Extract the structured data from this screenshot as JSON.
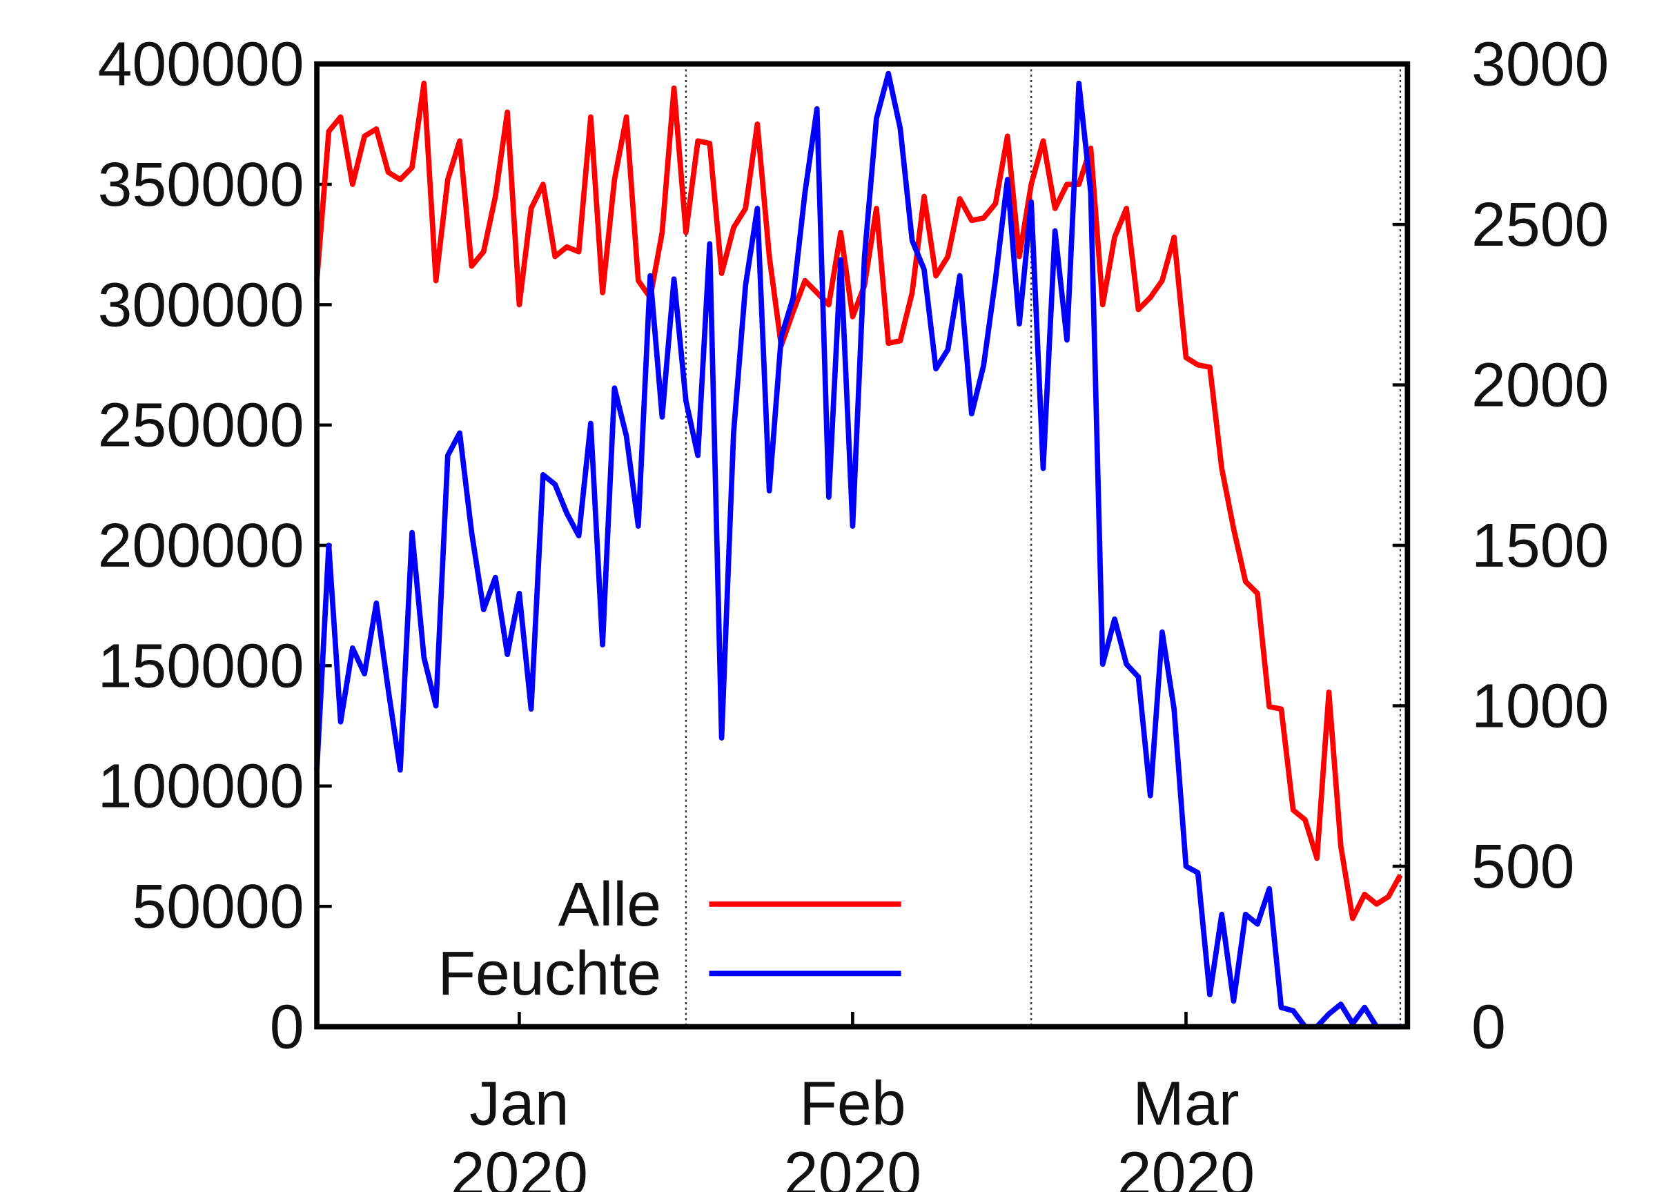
{
  "chart_data": {
    "type": "line",
    "x": [
      1,
      2,
      3,
      4,
      5,
      6,
      7,
      8,
      9,
      10,
      11,
      12,
      13,
      14,
      15,
      16,
      17,
      18,
      19,
      20,
      21,
      22,
      23,
      24,
      25,
      26,
      27,
      28,
      29,
      30,
      31,
      32,
      33,
      34,
      35,
      36,
      37,
      38,
      39,
      40,
      41,
      42,
      43,
      44,
      45,
      46,
      47,
      48,
      49,
      50,
      51,
      52,
      53,
      54,
      55,
      56,
      57,
      58,
      59,
      60,
      61,
      62,
      63,
      64,
      65,
      66,
      67,
      68,
      69,
      70,
      71,
      72,
      73,
      74,
      75,
      76,
      77,
      78,
      79,
      80,
      81,
      82,
      83,
      84,
      85,
      86,
      87,
      88,
      89,
      90,
      91,
      92
    ],
    "xlim": [
      1,
      92.6
    ],
    "xticks": [
      {
        "value": 18,
        "label": "Jan\n2020"
      },
      {
        "value": 46,
        "label": "Feb\n2020"
      },
      {
        "value": 74,
        "label": "Mar\n2020"
      }
    ],
    "month_starts": [
      32,
      61,
      92
    ],
    "ylim": [
      0,
      400000
    ],
    "yticks": [
      0,
      50000,
      100000,
      150000,
      200000,
      250000,
      300000,
      350000,
      400000
    ],
    "y2lim": [
      0,
      3000
    ],
    "y2ticks": [
      0,
      500,
      1000,
      1500,
      2000,
      2500,
      3000
    ],
    "legend": "bottom-center",
    "series": [
      {
        "name": "Alle",
        "color": "#ff0000",
        "values": [
          310000,
          372000,
          378000,
          350000,
          370000,
          373000,
          355000,
          352000,
          357000,
          392000,
          310000,
          352000,
          368000,
          316000,
          322000,
          345000,
          380000,
          300000,
          340000,
          350000,
          320000,
          324000,
          322000,
          378000,
          305000,
          352000,
          378000,
          310000,
          303000,
          330000,
          390000,
          330000,
          368000,
          367000,
          313000,
          332000,
          340000,
          375000,
          320000,
          283000,
          297000,
          310000,
          305000,
          300000,
          330000,
          295000,
          308000,
          340000,
          284000,
          285000,
          305000,
          345000,
          312000,
          320000,
          344000,
          335000,
          336000,
          342000,
          370000,
          320000,
          350000,
          368000,
          340000,
          350000,
          350000,
          365000,
          300000,
          328000,
          340000,
          298000,
          303000,
          310000,
          328000,
          278000,
          275000,
          274000,
          232000,
          207000,
          185000,
          180000,
          133000,
          132000,
          90000,
          86000,
          70000,
          139000,
          75000,
          45000,
          55000,
          51000,
          54000,
          63000
        ]
      },
      {
        "name": "Feuchte",
        "color": "#0000ff",
        "axis": "y2",
        "values": [
          800,
          1500,
          950,
          1180,
          1100,
          1320,
          1050,
          800,
          1540,
          1150,
          1000,
          1780,
          1850,
          1540,
          1300,
          1400,
          1160,
          1350,
          990,
          1720,
          1690,
          1600,
          1530,
          1880,
          1190,
          1990,
          1840,
          1560,
          2340,
          1900,
          2330,
          1950,
          1780,
          2440,
          900,
          1850,
          2310,
          2550,
          1670,
          2150,
          2270,
          2600,
          2860,
          1650,
          2390,
          1560,
          2400,
          2830,
          2970,
          2800,
          2450,
          2360,
          2050,
          2110,
          2340,
          1910,
          2060,
          2330,
          2640,
          2190,
          2570,
          1740,
          2480,
          2140,
          2940,
          2600,
          1130,
          1270,
          1130,
          1090,
          720,
          1230,
          990,
          500,
          480,
          100,
          350,
          80,
          350,
          320,
          430,
          60,
          50,
          0,
          0,
          40,
          70,
          10,
          60,
          0,
          0,
          0
        ]
      }
    ]
  }
}
